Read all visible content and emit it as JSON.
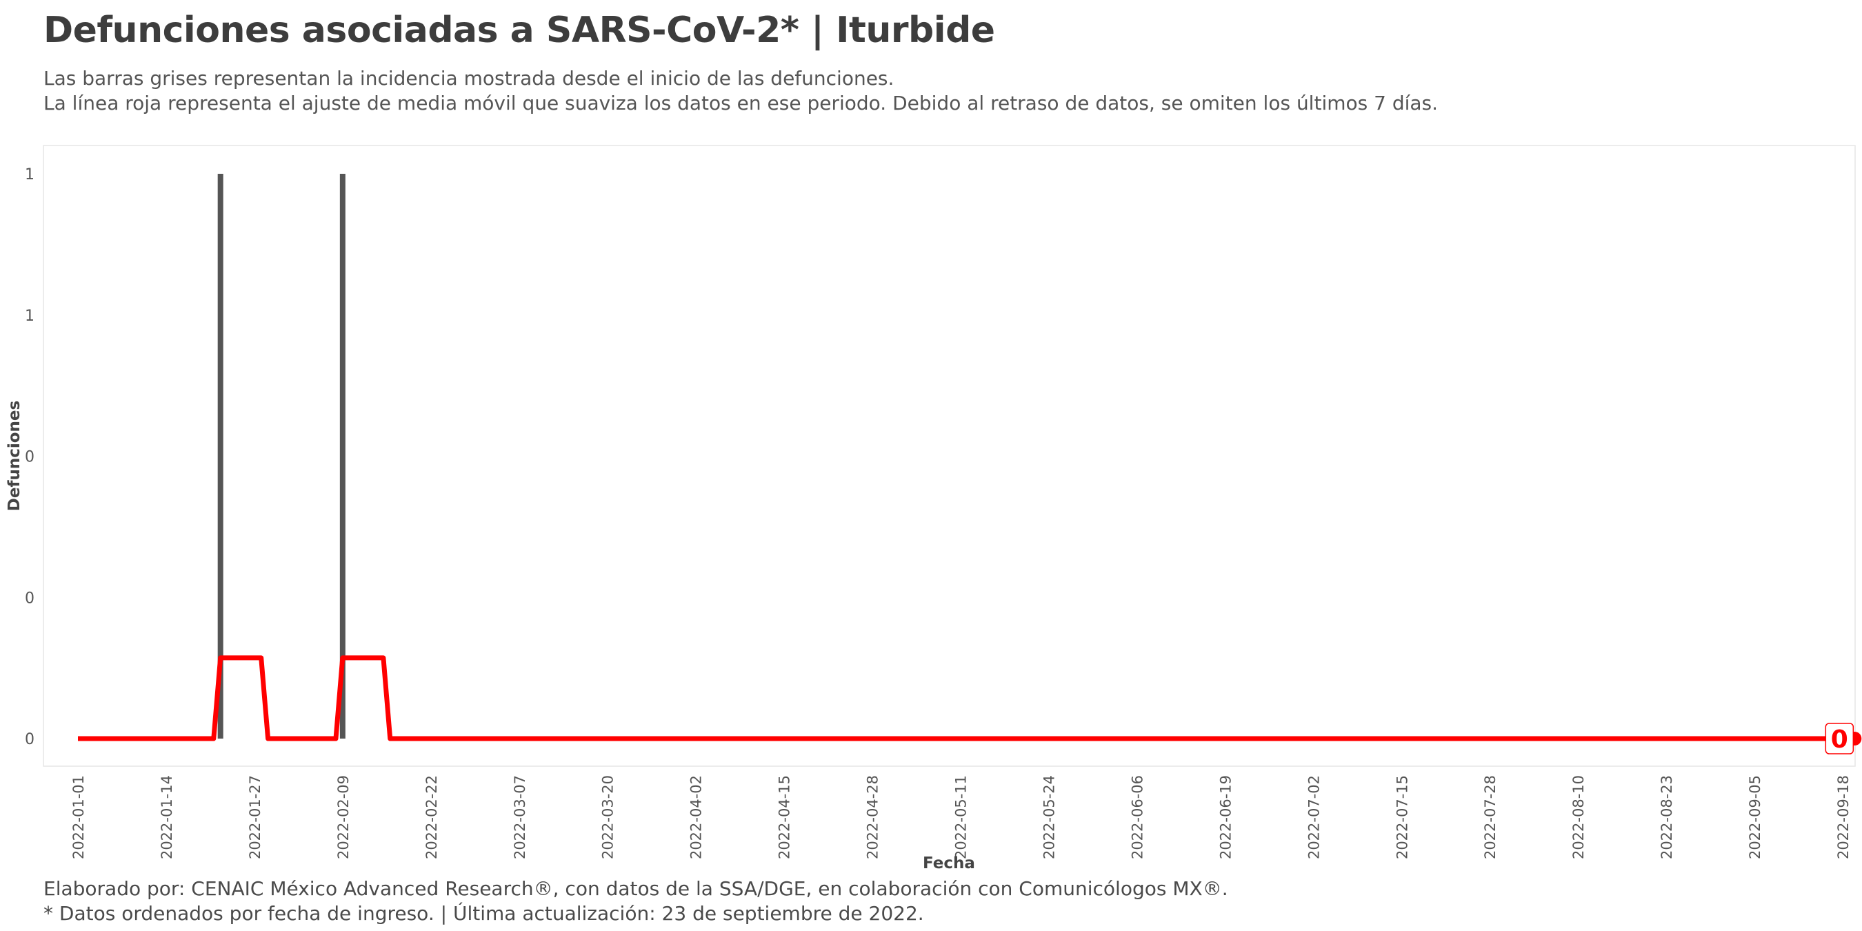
{
  "chart_data": {
    "type": "bar",
    "title": "Defunciones asociadas a SARS-CoV-2* | Iturbide",
    "subtitle_lines": [
      "Las barras grises representan la incidencia mostrada desde el inicio de las defunciones.",
      "La línea roja representa el ajuste de media móvil que suaviza los datos en ese periodo. Debido al retraso de datos, se omiten los últimos 7 días."
    ],
    "xlabel": "Fecha",
    "ylabel": "Defunciones",
    "x_range": [
      "2022-01-01",
      "2022-09-18"
    ],
    "ylim": [
      0,
      1
    ],
    "y_ticks": [
      {
        "value": 0,
        "label": "0"
      },
      {
        "value": 0.25,
        "label": "0"
      },
      {
        "value": 0.5,
        "label": "0"
      },
      {
        "value": 0.75,
        "label": "1"
      },
      {
        "value": 1,
        "label": "1"
      }
    ],
    "x_ticks": [
      "2022-01-01",
      "2022-01-14",
      "2022-01-27",
      "2022-02-09",
      "2022-02-22",
      "2022-03-07",
      "2022-03-20",
      "2022-04-02",
      "2022-04-15",
      "2022-04-28",
      "2022-05-11",
      "2022-05-24",
      "2022-06-06",
      "2022-06-19",
      "2022-07-02",
      "2022-07-15",
      "2022-07-28",
      "2022-08-10",
      "2022-08-23",
      "2022-09-05",
      "2022-09-18"
    ],
    "series": [
      {
        "type": "bar",
        "color": "#555555",
        "points": [
          {
            "date": "2022-01-22",
            "value": 1
          },
          {
            "date": "2022-02-09",
            "value": 1
          }
        ]
      },
      {
        "type": "line",
        "color": "#ff0000",
        "points": [
          {
            "date": "2022-01-01",
            "value": 0
          },
          {
            "date": "2022-01-21",
            "value": 0
          },
          {
            "date": "2022-01-22",
            "value": 0.143
          },
          {
            "date": "2022-01-28",
            "value": 0.143
          },
          {
            "date": "2022-01-29",
            "value": 0
          },
          {
            "date": "2022-02-08",
            "value": 0
          },
          {
            "date": "2022-02-09",
            "value": 0.143
          },
          {
            "date": "2022-02-15",
            "value": 0.143
          },
          {
            "date": "2022-02-16",
            "value": 0
          },
          {
            "date": "2022-09-16",
            "value": 0
          }
        ]
      }
    ],
    "end_label": "0",
    "grid": false,
    "legend": "none"
  },
  "caption_lines": [
    "Elaborado por: CENAIC México Advanced Research®, con datos de la SSA/DGE, en colaboración con Comunicólogos MX®.",
    "* Datos ordenados por fecha de ingreso. | Última actualización: 23 de septiembre de 2022."
  ]
}
